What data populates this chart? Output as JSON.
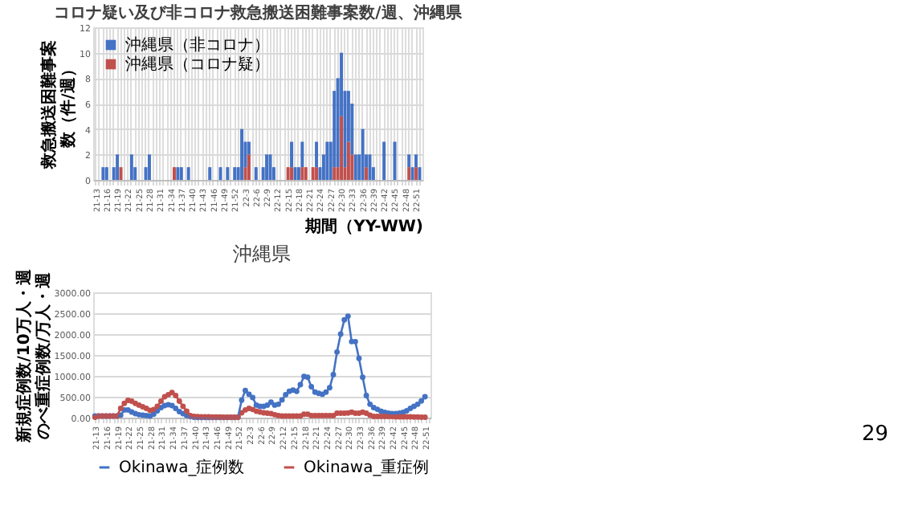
{
  "chart_data": [
    {
      "type": "bar",
      "title": "コロナ疑い及び非コロナ救急搬送困難事案数/週、沖縄県",
      "xlabel": "期間（YY-WW)",
      "ylabel": "救急搬送困難事案数（件/週）",
      "categories": [
        "21-13",
        null,
        null,
        "21-16",
        null,
        null,
        "21-19",
        null,
        null,
        "21-22",
        null,
        null,
        "21-25",
        null,
        null,
        "21-28",
        null,
        null,
        "21-31",
        null,
        null,
        "21-34",
        null,
        null,
        "21-37",
        null,
        null,
        "21-40",
        null,
        null,
        "21-43",
        null,
        null,
        "21-46",
        null,
        null,
        "21-49",
        null,
        null,
        "21-52",
        null,
        null,
        "22-3",
        null,
        null,
        "22-6",
        null,
        null,
        "22-9",
        null,
        null,
        "22-12",
        null,
        null,
        "22-15",
        null,
        null,
        "22-18",
        null,
        null,
        "22-21",
        null,
        null,
        "22-24",
        null,
        null,
        "22-27",
        null,
        null,
        "22-30",
        null,
        null,
        "22-33",
        null,
        null,
        "22-36",
        null,
        null,
        "22-39",
        null,
        null,
        "22-42",
        null,
        null,
        "22-45",
        null,
        null,
        "22-48",
        null,
        null,
        "22-51",
        null
      ],
      "stacked": true,
      "series": [
        {
          "name": "沖縄県（コロナ疑）",
          "color": "#c0504d",
          "values": [
            0,
            0,
            0,
            0,
            0,
            0,
            0,
            1,
            0,
            0,
            0,
            0,
            0,
            0,
            0,
            0,
            0,
            0,
            0,
            0,
            0,
            0,
            1,
            0,
            0,
            0,
            0,
            0,
            0,
            0,
            0,
            0,
            0,
            0,
            0,
            0,
            0,
            0,
            0,
            0,
            0,
            0,
            1,
            2,
            0,
            0,
            0,
            0,
            0,
            0,
            0,
            0,
            0,
            0,
            1,
            1,
            0,
            0,
            1,
            1,
            0,
            1,
            1,
            0,
            0,
            0,
            0,
            1,
            1,
            5,
            1,
            3,
            2,
            0,
            0,
            0,
            1,
            0,
            0,
            0,
            0,
            0,
            0,
            0,
            0,
            0,
            0,
            0,
            1,
            0,
            1,
            0
          ]
        },
        {
          "name": "沖縄県（非コロナ）",
          "color": "#4472c4",
          "values": [
            0,
            0,
            1,
            1,
            0,
            1,
            2,
            0,
            0,
            0,
            2,
            1,
            0,
            0,
            1,
            2,
            0,
            0,
            0,
            0,
            0,
            0,
            0,
            1,
            1,
            0,
            1,
            0,
            0,
            0,
            0,
            0,
            1,
            0,
            0,
            1,
            0,
            1,
            0,
            1,
            1,
            4,
            2,
            1,
            0,
            1,
            0,
            1,
            2,
            2,
            1,
            0,
            0,
            0,
            0,
            2,
            1,
            1,
            2,
            0,
            0,
            0,
            2,
            1,
            2,
            3,
            3,
            6,
            7,
            5,
            6,
            4,
            4,
            2,
            2,
            4,
            1,
            2,
            1,
            0,
            0,
            3,
            0,
            0,
            3,
            0,
            0,
            0,
            1,
            1,
            1,
            1
          ]
        }
      ],
      "ylim": [
        0,
        12
      ],
      "yticks": [
        0,
        2,
        4,
        6,
        8,
        10,
        12
      ],
      "grid": true,
      "legend": "top left"
    },
    {
      "type": "line",
      "title": "沖縄県",
      "ylabel": "新規症例数/10万人・週のべ重症例数/万人・週",
      "categories": [
        "21-13",
        null,
        null,
        "21-16",
        null,
        null,
        "21-19",
        null,
        null,
        "21-22",
        null,
        null,
        "21-25",
        null,
        null,
        "21-28",
        null,
        null,
        "21-31",
        null,
        null,
        "21-34",
        null,
        null,
        "21-37",
        null,
        null,
        "21-40",
        null,
        null,
        "21-43",
        null,
        null,
        "21-46",
        null,
        null,
        "21-49",
        null,
        null,
        "21-52",
        null,
        null,
        "22-3",
        null,
        null,
        "22-6",
        null,
        null,
        "22-9",
        null,
        null,
        "22-12",
        null,
        null,
        "22-15",
        null,
        null,
        "22-18",
        null,
        null,
        "22-21",
        null,
        null,
        "22-24",
        null,
        null,
        "22-27",
        null,
        null,
        "22-30",
        null,
        null,
        "22-33",
        null,
        null,
        "22-36",
        null,
        null,
        "22-39",
        null,
        null,
        "22-42",
        null,
        null,
        "22-45",
        null,
        null,
        "22-48",
        null,
        null,
        "22-51",
        null
      ],
      "series": [
        {
          "name": "Okinawa_症例数",
          "color": "#4472c4",
          "values": [
            40,
            40,
            40,
            40,
            40,
            40,
            40,
            60,
            185,
            185,
            135,
            95,
            70,
            60,
            50,
            40,
            80,
            165,
            240,
            290,
            310,
            290,
            220,
            145,
            95,
            50,
            30,
            10,
            5,
            5,
            5,
            5,
            5,
            5,
            5,
            5,
            5,
            5,
            5,
            10,
            420,
            650,
            560,
            480,
            300,
            270,
            270,
            300,
            370,
            300,
            320,
            425,
            550,
            630,
            660,
            630,
            790,
            985,
            965,
            740,
            610,
            580,
            560,
            610,
            715,
            1030,
            1570,
            2000,
            2340,
            2430,
            1820,
            1820,
            1420,
            965,
            530,
            320,
            240,
            200,
            155,
            125,
            105,
            95,
            95,
            105,
            125,
            165,
            220,
            270,
            320,
            400,
            500,
            null
          ]
        },
        {
          "name": "Okinawa_重症例",
          "color": "#c0504d",
          "values": [
            10,
            40,
            40,
            40,
            40,
            40,
            40,
            220,
            340,
            415,
            395,
            340,
            300,
            260,
            220,
            175,
            195,
            270,
            395,
            500,
            550,
            600,
            530,
            395,
            270,
            155,
            50,
            30,
            25,
            20,
            20,
            20,
            15,
            15,
            15,
            10,
            10,
            10,
            10,
            10,
            115,
            185,
            220,
            195,
            155,
            135,
            115,
            105,
            95,
            70,
            50,
            40,
            40,
            40,
            40,
            40,
            40,
            80,
            80,
            50,
            50,
            50,
            50,
            50,
            50,
            50,
            105,
            105,
            105,
            110,
            130,
            105,
            105,
            130,
            105,
            60,
            30,
            30,
            30,
            30,
            30,
            30,
            20,
            20,
            20,
            20,
            20,
            15,
            15,
            10,
            10,
            null
          ]
        }
      ],
      "ylim": [
        0,
        3000
      ],
      "yticks": [
        {
          "value": 0,
          "label": "0.00"
        },
        {
          "value": 500,
          "label": "500.00"
        },
        {
          "value": 1000,
          "label": "1000.00"
        },
        {
          "value": 1500,
          "label": "1500.00"
        },
        {
          "value": 2000,
          "label": "2000.00"
        },
        {
          "value": 2500,
          "label": "2500.00"
        },
        {
          "value": 3000,
          "label": "3000.00"
        }
      ],
      "grid": "y",
      "legend": "bottom",
      "marker": "circle",
      "line_style": "solid",
      "annotations": [
        "29"
      ]
    }
  ]
}
